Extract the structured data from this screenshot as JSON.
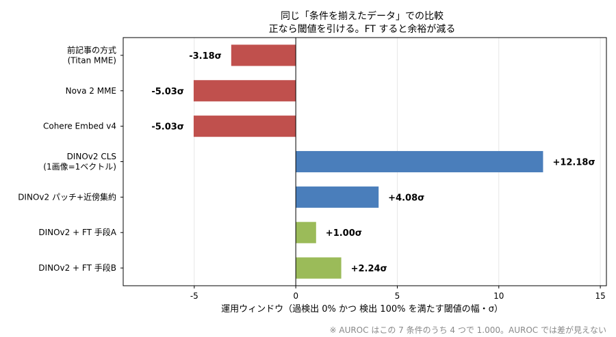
{
  "chart_data": {
    "type": "bar",
    "orientation": "horizontal",
    "title": "同じ「条件を揃えたデータ」での比較",
    "subtitle": "正なら閾値を引ける。FT すると余裕が減る",
    "xlabel": "運用ウィンドウ（過検出 0% かつ 検出 100% を満たす閾値の幅・σ）",
    "ylabel": "",
    "xlim": [
      -8.5,
      15.3
    ],
    "xticks": [
      -5,
      0,
      5,
      10,
      15
    ],
    "grid": "vertical",
    "categories": [
      "前記事の方式\n(Titan MME)",
      "Nova 2 MME",
      "Cohere Embed v4",
      "DINOv2 CLS\n(1画像=1ベクトル)",
      "DINOv2 パッチ+近傍集約",
      "DINOv2 + FT 手段A",
      "DINOv2 + FT 手段B"
    ],
    "values": [
      -3.18,
      -5.03,
      -5.03,
      12.18,
      4.08,
      1.0,
      2.24
    ],
    "value_labels": [
      "-3.18σ",
      "-5.03σ",
      "-5.03σ",
      "+12.18σ",
      "+4.08σ",
      "+1.00σ",
      "+2.24σ"
    ],
    "colors": [
      "#c0504d",
      "#c0504d",
      "#c0504d",
      "#4a7ebb",
      "#4a7ebb",
      "#9bbb59",
      "#9bbb59"
    ],
    "footnote": "※ AUROC はこの 7 条件のうち 4 つで 1.000。AUROC では差が見えない"
  }
}
